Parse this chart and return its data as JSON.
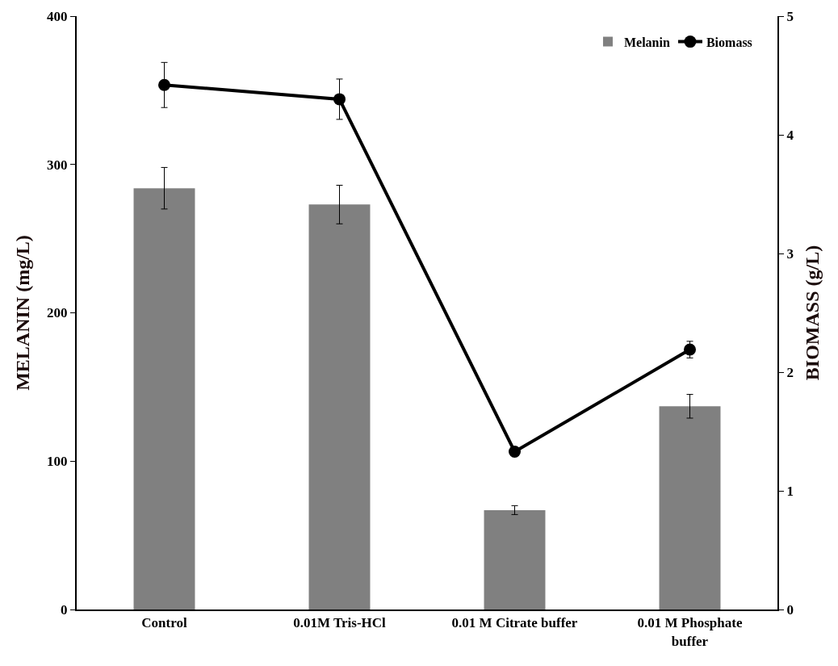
{
  "chart_data": {
    "type": "bar",
    "xlabel": null,
    "ylabel": "MELANIN (mg/L)",
    "y2label": "BIOMASS (g/L)",
    "categories": [
      "Control",
      "0.01M Tris-HCl",
      "0.01 M Citrate buffer",
      "0.01 M Phosphate buffer"
    ],
    "series": [
      {
        "name": "Melanin",
        "color": "#808080",
        "values": [
          284,
          273,
          67,
          137
        ],
        "errors": [
          14,
          13,
          3,
          8
        ]
      },
      {
        "name": "Biomass",
        "type": "line",
        "axis": "y2",
        "color": "#000000",
        "marker": "circle",
        "line_style": "solid",
        "values": [
          4.42,
          4.3,
          1.33,
          2.19
        ],
        "errors": [
          0.19,
          0.17,
          null,
          0.07
        ]
      }
    ],
    "ylim": [
      0,
      400
    ],
    "yticks": [
      0,
      100,
      200,
      300,
      400
    ],
    "y2lim": [
      0,
      5
    ],
    "y2ticks": [
      0,
      1,
      2,
      3,
      4,
      5
    ],
    "legend": "top right"
  }
}
